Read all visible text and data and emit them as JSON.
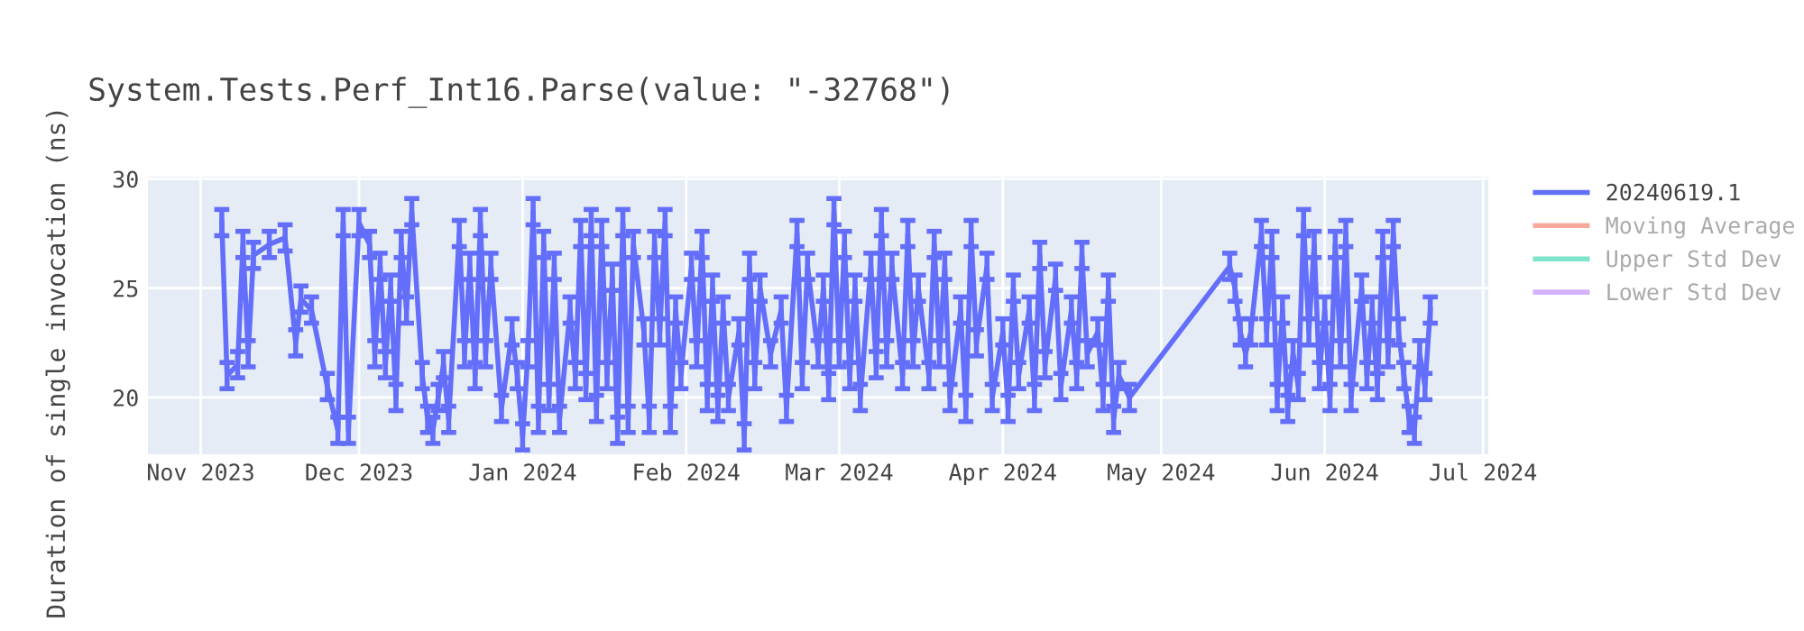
{
  "chart_data": {
    "type": "line",
    "title": "System.Tests.Perf_Int16.Parse(value: \"-32768\")",
    "ylabel": "Duration of single invocation (ns)",
    "xlim": [
      "2023-10-22",
      "2024-07-02"
    ],
    "xticks": [
      {
        "value": "2023-11-01",
        "label": "Nov 2023"
      },
      {
        "value": "2023-12-01",
        "label": "Dec 2023"
      },
      {
        "value": "2024-01-01",
        "label": "Jan 2024"
      },
      {
        "value": "2024-02-01",
        "label": "Feb 2024"
      },
      {
        "value": "2024-03-01",
        "label": "Mar 2024"
      },
      {
        "value": "2024-04-01",
        "label": "Apr 2024"
      },
      {
        "value": "2024-05-01",
        "label": "May 2024"
      },
      {
        "value": "2024-06-01",
        "label": "Jun 2024"
      },
      {
        "value": "2024-07-01",
        "label": "Jul 2024"
      }
    ],
    "ylim": [
      17.4,
      30.1
    ],
    "yticks": [
      20,
      25,
      30
    ],
    "grid": true,
    "legend": "right",
    "marker": "none",
    "line_style": "solid",
    "series": [
      {
        "name": "20240619.1",
        "color": "#636efa",
        "x": [
          "2023-11-05",
          "2023-11-06",
          "2023-11-08",
          "2023-11-09",
          "2023-11-10",
          "2023-11-11",
          "2023-11-14",
          "2023-11-17",
          "2023-11-19",
          "2023-11-20",
          "2023-11-22",
          "2023-11-25",
          "2023-11-27",
          "2023-11-28",
          "2023-11-29",
          "2023-12-01",
          "2023-12-03",
          "2023-12-04",
          "2023-12-05",
          "2023-12-06",
          "2023-12-07",
          "2023-12-08",
          "2023-12-09",
          "2023-12-10",
          "2023-12-11",
          "2023-12-13",
          "2023-12-14",
          "2023-12-15",
          "2023-12-16",
          "2023-12-17",
          "2023-12-18",
          "2023-12-20",
          "2023-12-21",
          "2023-12-22",
          "2023-12-23",
          "2023-12-24",
          "2023-12-25",
          "2023-12-26",
          "2023-12-28",
          "2023-12-30",
          "2023-12-31",
          "2024-01-01",
          "2024-01-02",
          "2024-01-03",
          "2024-01-04",
          "2024-01-05",
          "2024-01-06",
          "2024-01-07",
          "2024-01-08",
          "2024-01-10",
          "2024-01-11",
          "2024-01-12",
          "2024-01-13",
          "2024-01-14",
          "2024-01-15",
          "2024-01-16",
          "2024-01-17",
          "2024-01-18",
          "2024-01-19",
          "2024-01-20",
          "2024-01-21",
          "2024-01-22",
          "2024-01-24",
          "2024-01-25",
          "2024-01-26",
          "2024-01-27",
          "2024-01-28",
          "2024-01-29",
          "2024-01-30",
          "2024-01-31",
          "2024-02-02",
          "2024-02-03",
          "2024-02-04",
          "2024-02-05",
          "2024-02-06",
          "2024-02-07",
          "2024-02-08",
          "2024-02-09",
          "2024-02-11",
          "2024-02-12",
          "2024-02-13",
          "2024-02-14",
          "2024-02-15",
          "2024-02-17",
          "2024-02-19",
          "2024-02-20",
          "2024-02-22",
          "2024-02-23",
          "2024-02-24",
          "2024-02-26",
          "2024-02-27",
          "2024-02-28",
          "2024-02-29",
          "2024-03-01",
          "2024-03-02",
          "2024-03-03",
          "2024-03-04",
          "2024-03-05",
          "2024-03-07",
          "2024-03-08",
          "2024-03-09",
          "2024-03-10",
          "2024-03-11",
          "2024-03-13",
          "2024-03-14",
          "2024-03-15",
          "2024-03-16",
          "2024-03-18",
          "2024-03-19",
          "2024-03-20",
          "2024-03-21",
          "2024-03-22",
          "2024-03-24",
          "2024-03-25",
          "2024-03-26",
          "2024-03-27",
          "2024-03-29",
          "2024-03-30",
          "2024-04-01",
          "2024-04-02",
          "2024-04-03",
          "2024-04-04",
          "2024-04-06",
          "2024-04-07",
          "2024-04-08",
          "2024-04-09",
          "2024-04-11",
          "2024-04-12",
          "2024-04-14",
          "2024-04-15",
          "2024-04-16",
          "2024-04-17",
          "2024-04-19",
          "2024-04-20",
          "2024-04-21",
          "2024-04-22",
          "2024-04-23",
          "2024-04-25",
          "2024-05-14",
          "2024-05-15",
          "2024-05-16",
          "2024-05-17",
          "2024-05-18",
          "2024-05-20",
          "2024-05-21",
          "2024-05-22",
          "2024-05-23",
          "2024-05-24",
          "2024-05-25",
          "2024-05-26",
          "2024-05-27",
          "2024-05-28",
          "2024-05-29",
          "2024-05-30",
          "2024-05-31",
          "2024-06-01",
          "2024-06-02",
          "2024-06-03",
          "2024-06-04",
          "2024-06-05",
          "2024-06-06",
          "2024-06-08",
          "2024-06-09",
          "2024-06-10",
          "2024-06-11",
          "2024-06-12",
          "2024-06-13",
          "2024-06-14",
          "2024-06-15",
          "2024-06-16",
          "2024-06-17",
          "2024-06-18",
          "2024-06-19",
          "2024-06-20",
          "2024-06-21"
        ],
        "values": [
          28,
          21,
          21.5,
          27,
          22,
          26.5,
          27,
          27.3,
          22.5,
          24.5,
          24,
          20.5,
          18.5,
          28,
          18.5,
          28,
          27,
          22,
          26,
          21.5,
          25,
          20,
          27,
          24,
          28.5,
          21,
          19,
          18.5,
          20,
          21.5,
          19,
          27.5,
          22,
          26,
          21,
          28,
          22,
          26,
          19.5,
          23,
          21,
          18.2,
          22,
          28.5,
          19,
          27,
          20,
          26,
          19,
          24,
          21,
          27.5,
          20.5,
          28,
          19.5,
          27.5,
          21,
          25.5,
          18.5,
          28,
          19,
          27,
          23,
          19,
          27,
          23,
          28,
          19,
          24,
          21,
          26,
          22,
          27,
          20,
          25,
          19.5,
          24,
          20,
          23,
          18.2,
          26,
          21,
          25,
          22,
          24,
          19.5,
          27.5,
          21,
          26,
          22,
          25,
          20.5,
          28.5,
          22,
          27,
          21,
          25,
          20,
          26,
          21.5,
          28,
          22,
          26,
          21,
          27.5,
          22,
          25,
          21,
          27,
          22,
          26,
          20,
          24,
          19.5,
          27.5,
          22.5,
          26,
          20,
          23,
          19.5,
          25,
          21,
          24,
          20,
          26.5,
          21.5,
          25.5,
          20.5,
          24,
          21,
          26.5,
          22,
          23,
          20,
          25,
          19,
          21,
          20,
          26,
          25,
          23,
          22,
          23,
          27.5,
          23,
          27,
          20,
          24,
          19.5,
          22,
          20.5,
          28,
          23,
          27,
          21,
          24,
          20,
          27,
          22,
          27.5,
          20,
          25,
          21,
          24,
          20.5,
          27,
          22,
          27.5,
          23,
          21,
          19,
          18.5,
          22,
          20.5,
          24
        ],
        "errors": [
          0.6,
          0.6,
          0.6,
          0.6,
          0.6,
          0.6,
          0.6,
          0.6,
          0.6,
          0.6,
          0.6,
          0.6,
          0.6,
          0.6,
          0.6,
          0.6,
          0.6,
          0.6,
          0.6,
          0.6,
          0.6,
          0.6,
          0.6,
          0.6,
          0.6,
          0.6,
          0.6,
          0.6,
          0.6,
          0.6,
          0.6,
          0.6,
          0.6,
          0.6,
          0.6,
          0.6,
          0.6,
          0.6,
          0.6,
          0.6,
          0.6,
          0.6,
          0.6,
          0.6,
          0.6,
          0.6,
          0.6,
          0.6,
          0.6,
          0.6,
          0.6,
          0.6,
          0.6,
          0.6,
          0.6,
          0.6,
          0.6,
          0.6,
          0.6,
          0.6,
          0.6,
          0.6,
          0.6,
          0.6,
          0.6,
          0.6,
          0.6,
          0.6,
          0.6,
          0.6,
          0.6,
          0.6,
          0.6,
          0.6,
          0.6,
          0.6,
          0.6,
          0.6,
          0.6,
          0.6,
          0.6,
          0.6,
          0.6,
          0.6,
          0.6,
          0.6,
          0.6,
          0.6,
          0.6,
          0.6,
          0.6,
          0.6,
          0.6,
          0.6,
          0.6,
          0.6,
          0.6,
          0.6,
          0.6,
          0.6,
          0.6,
          0.6,
          0.6,
          0.6,
          0.6,
          0.6,
          0.6,
          0.6,
          0.6,
          0.6,
          0.6,
          0.6,
          0.6,
          0.6,
          0.6,
          0.6,
          0.6,
          0.6,
          0.6,
          0.6,
          0.6,
          0.6,
          0.6,
          0.6,
          0.6,
          0.6,
          0.6,
          0.6,
          0.6,
          0.6,
          0.6,
          0.6,
          0.6,
          0.6,
          0.6,
          0.6,
          0.6,
          0.6,
          0.6,
          0.6,
          0.6,
          0.6,
          0.6,
          0.6,
          0.6,
          0.6,
          0.6,
          0.6,
          0.6,
          0.6,
          0.6,
          0.6,
          0.6,
          0.6,
          0.6,
          0.6,
          0.6,
          0.6,
          0.6,
          0.6,
          0.6,
          0.6,
          0.6,
          0.6,
          0.6,
          0.6,
          0.6,
          0.6,
          0.6,
          0.6,
          0.6,
          0.6,
          0.6,
          0.6,
          0.6
        ]
      },
      {
        "name": "Moving Average",
        "color": "#ef553b"
      },
      {
        "name": "Upper Std Dev",
        "color": "#00cc96"
      },
      {
        "name": "Lower Std Dev",
        "color": "#ab63fa"
      }
    ]
  }
}
